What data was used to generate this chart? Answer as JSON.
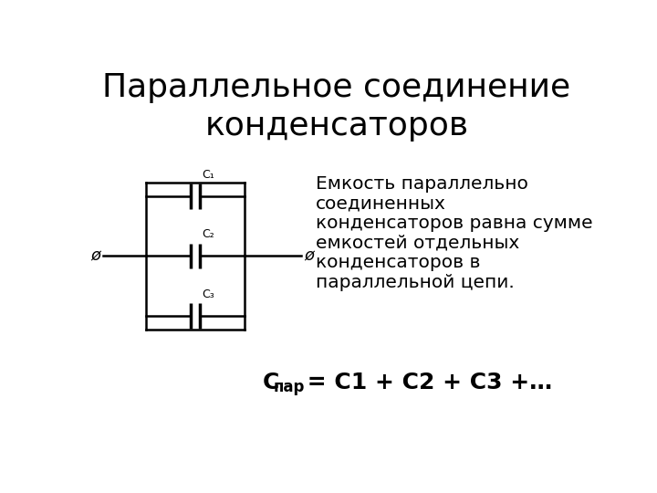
{
  "title": "Параллельное соединение\nконденсаторов",
  "title_fontsize": 26,
  "title_color": "#000000",
  "bg_color": "#ffffff",
  "desc_line1": "Емкость параллельно",
  "desc_line2": "соединенных",
  "desc_line3": "конденсаторов равна сумме",
  "desc_line4": "емкостей отдельных",
  "desc_line5": "конденсаторов в",
  "desc_line6": "параллельной цепи.",
  "description_fontsize": 14.5,
  "cap_labels": [
    "C₁",
    "C₂",
    "C₃"
  ],
  "label_fontsize": 9,
  "phi_symbol": "ø",
  "formula_C": "C",
  "formula_sub": "пар",
  "formula_rest": " = C1 + C2 + C3 +…",
  "formula_fontsize": 18
}
